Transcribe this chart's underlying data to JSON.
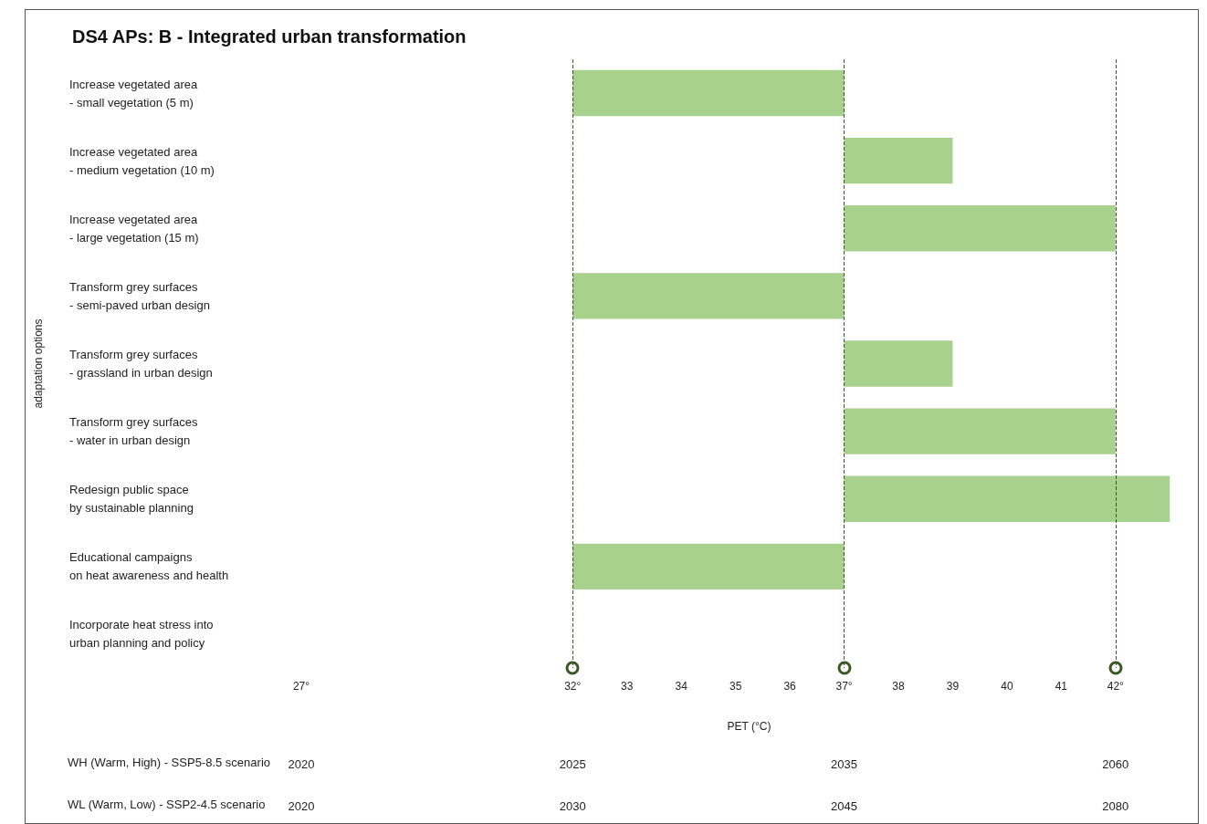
{
  "chart_data": {
    "type": "bar",
    "orientation": "horizontal",
    "title": "DS4 APs: B - Integrated urban transformation",
    "xlabel": "PET (°C)",
    "ylabel": "adaptation options",
    "categories": [
      "Increase vegetated area\n- small vegetation (5 m)",
      "Increase vegetated area\n- medium vegetation (10 m)",
      "Increase vegetated area\n- large vegetation (15 m)",
      "Transform grey surfaces\n- semi-paved urban design",
      "Transform grey surfaces\n- grassland in urban design",
      "Transform grey surfaces\n- water in urban design",
      "Redesign public space\nby sustainable planning",
      "Educational campaigns\non heat awareness and health",
      "Incorporate heat stress into\nurban planning and policy"
    ],
    "base": [
      32,
      37,
      37,
      32,
      37,
      37,
      37,
      32,
      null
    ],
    "values": [
      5,
      2,
      5,
      5,
      2,
      5,
      6,
      5,
      null
    ],
    "color": "#a9d18e",
    "xlim": [
      27,
      43.5
    ],
    "xticks": [
      {
        "value": 27,
        "label": "27°"
      },
      {
        "value": 32,
        "label": "32°"
      },
      33,
      34,
      35,
      36,
      {
        "value": 37,
        "label": "37°"
      },
      38,
      39,
      40,
      41,
      {
        "value": 42,
        "label": "42°"
      }
    ],
    "annotations": [
      "WH (Warm, High) - SSP5-8.5 scenario",
      "2020",
      "2025",
      "2035",
      "2060",
      "WL (Warm, Low) - SSP2-4.5 scenario",
      "2020",
      "2030",
      "2045",
      "2080"
    ],
    "ref_lines": [
      {
        "axis": "x",
        "value": 32,
        "color": "#385723",
        "line_style": "dashed"
      },
      {
        "axis": "x",
        "value": 37,
        "color": "#385723",
        "line_style": "dashed"
      },
      {
        "axis": "x",
        "value": 42,
        "color": "#385723",
        "line_style": "dashed"
      }
    ],
    "grid": false
  }
}
